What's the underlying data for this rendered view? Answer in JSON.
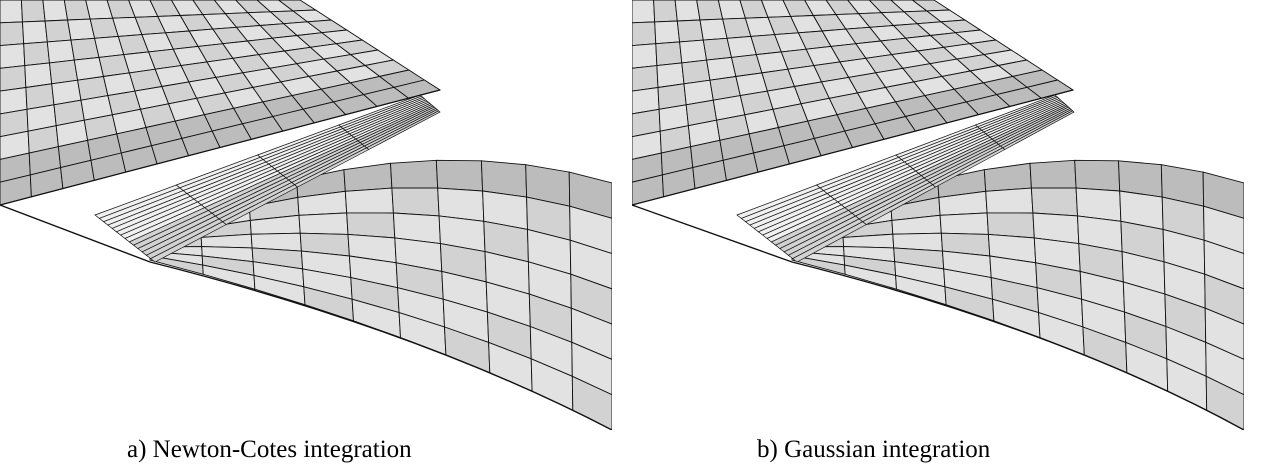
{
  "figure": {
    "panels": [
      {
        "id": "a",
        "caption": "a) Newton-Cotes integration"
      },
      {
        "id": "b",
        "caption": "b) Gaussian integration"
      }
    ],
    "colors": {
      "plate_light": "#e2e2e2",
      "plate_mid": "#d2d2d2",
      "plate_dark": "#bcbcbc",
      "fold_highlight": "#f0f0f0",
      "mesh_line": "#111111",
      "background": "#ffffff"
    }
  }
}
